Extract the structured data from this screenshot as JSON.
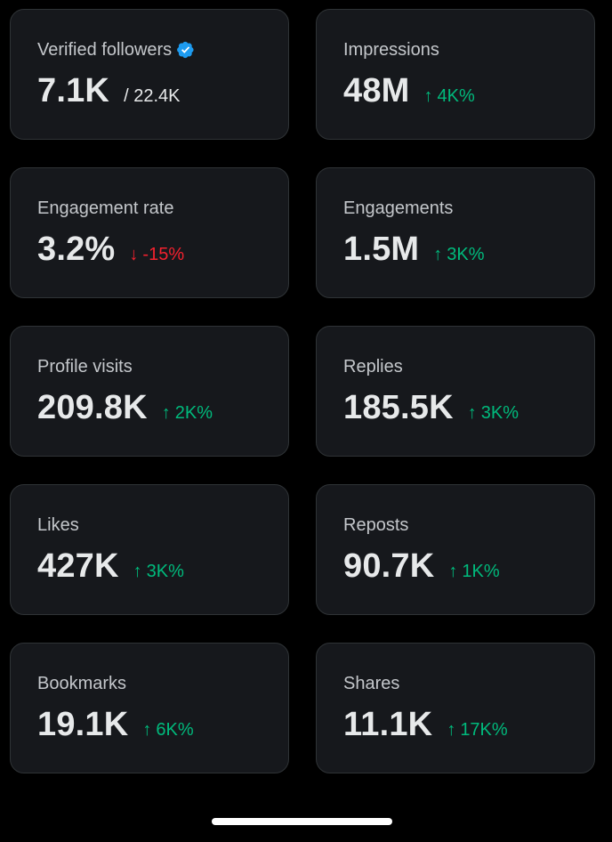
{
  "cards": [
    {
      "label": "Verified followers",
      "value": "7.1K",
      "total": "/ 22.4K",
      "verified_icon_color": "#1d9bf0"
    },
    {
      "label": "Impressions",
      "value": "48M",
      "arrow": "↑",
      "change": "4K%",
      "direction": "up"
    },
    {
      "label": "Engagement rate",
      "value": "3.2%",
      "arrow": "↓",
      "change": "-15%",
      "direction": "down"
    },
    {
      "label": "Engagements",
      "value": "1.5M",
      "arrow": "↑",
      "change": "3K%",
      "direction": "up"
    },
    {
      "label": "Profile visits",
      "value": "209.8K",
      "arrow": "↑",
      "change": "2K%",
      "direction": "up"
    },
    {
      "label": "Replies",
      "value": "185.5K",
      "arrow": "↑",
      "change": "3K%",
      "direction": "up"
    },
    {
      "label": "Likes",
      "value": "427K",
      "arrow": "↑",
      "change": "3K%",
      "direction": "up"
    },
    {
      "label": "Reposts",
      "value": "90.7K",
      "arrow": "↑",
      "change": "1K%",
      "direction": "up"
    },
    {
      "label": "Bookmarks",
      "value": "19.1K",
      "arrow": "↑",
      "change": "6K%",
      "direction": "up"
    },
    {
      "label": "Shares",
      "value": "11.1K",
      "arrow": "↑",
      "change": "17K%",
      "direction": "up"
    }
  ],
  "colors": {
    "background": "#000000",
    "card": "#16181c",
    "card_border": "#2f3336",
    "label": "#c4c7cb",
    "value": "#e7e9ea",
    "positive": "#00ba7c",
    "negative": "#f4212e",
    "verified": "#1d9bf0"
  }
}
